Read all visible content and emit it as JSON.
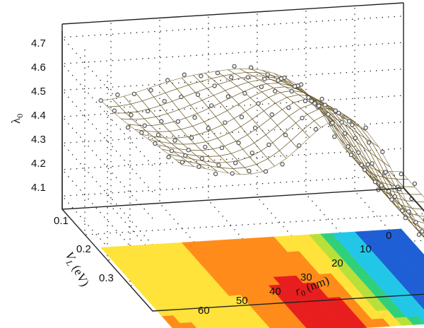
{
  "chart_data": {
    "type": "surface3d",
    "title": "",
    "axes": {
      "z": {
        "label": "λ",
        "label_sub": "0",
        "ticks": [
          "4.1",
          "4.2",
          "4.3",
          "4.4",
          "4.5",
          "4.6",
          "4.7"
        ],
        "range": [
          4.05,
          4.75
        ]
      },
      "x": {
        "label": "V",
        "label_sub": "L",
        "label_unit": " (eV)",
        "ticks": [
          "0.1",
          "0.2",
          "0.3"
        ],
        "range": [
          0.05,
          0.4
        ]
      },
      "y": {
        "label": "r",
        "label_sub": "0",
        "label_unit": " (nm)",
        "ticks": [
          "0",
          "10",
          "20",
          "30",
          "40",
          "50",
          "60"
        ],
        "range": [
          0,
          65
        ]
      }
    },
    "surface": {
      "description_values": "lambda_0 as function of r_0 and V_L",
      "r0_nm": [
        0,
        10,
        20,
        30,
        40,
        50,
        60
      ],
      "VL_eV": [
        0.1,
        0.2,
        0.3
      ],
      "lambda0": [
        [
          4.13,
          4.2,
          4.52,
          4.6,
          4.62,
          4.55,
          4.53
        ],
        [
          4.15,
          4.25,
          4.6,
          4.66,
          4.64,
          4.58,
          4.56
        ],
        [
          4.15,
          4.3,
          4.65,
          4.72,
          4.68,
          4.62,
          4.6
        ]
      ]
    },
    "colorscale": [
      "#1f5fd6",
      "#22c7e8",
      "#30d07a",
      "#b9e03a",
      "#ffe23a",
      "#ff8c1a",
      "#e81e1e"
    ],
    "grid": true
  }
}
